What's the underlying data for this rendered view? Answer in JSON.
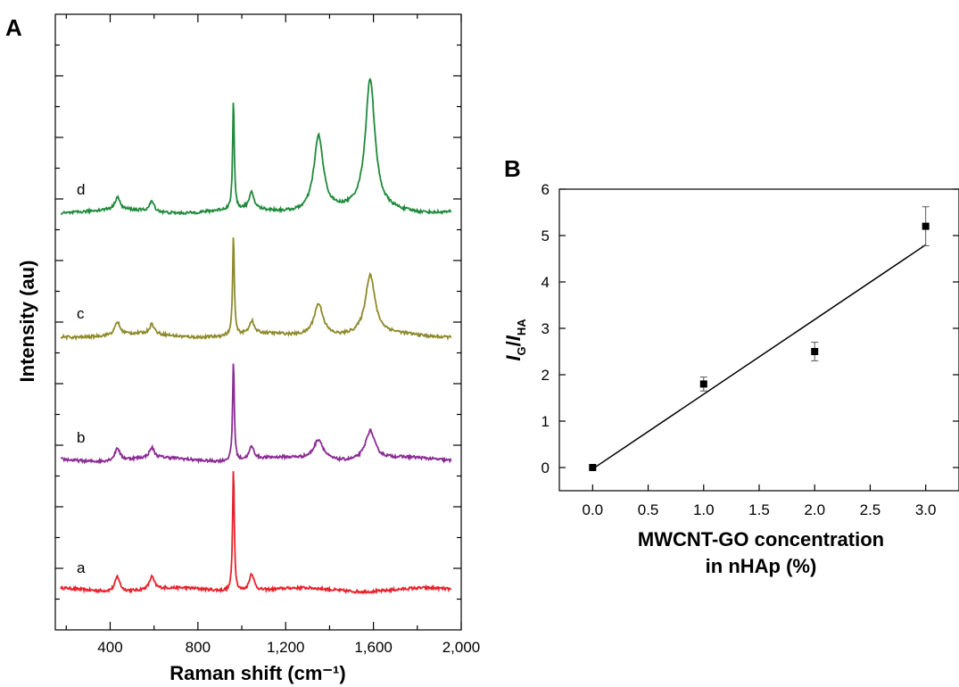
{
  "chart_data": [
    {
      "panel": "A",
      "type": "line",
      "xlabel": "Raman shift (cm⁻¹)",
      "ylabel": "Intensity (au)",
      "xlim": [
        150,
        2000
      ],
      "xticks": [
        400,
        800,
        1200,
        1600,
        2000
      ],
      "xtick_labels": [
        "400",
        "800",
        "1,200",
        "1,600",
        "2,000"
      ],
      "grid": false,
      "series": [
        {
          "name": "a",
          "color": "#e8212b",
          "peaks": [
            [
              433,
              0.12
            ],
            [
              590,
              0.1
            ],
            [
              962,
              1.0
            ],
            [
              1045,
              0.14
            ]
          ]
        },
        {
          "name": "b",
          "color": "#8b2b93",
          "peaks": [
            [
              433,
              0.1
            ],
            [
              590,
              0.08
            ],
            [
              962,
              0.8
            ],
            [
              1045,
              0.1
            ],
            [
              1350,
              0.16
            ],
            [
              1585,
              0.23
            ]
          ]
        },
        {
          "name": "c",
          "color": "#8e8a2b",
          "peaks": [
            [
              433,
              0.1
            ],
            [
              590,
              0.08
            ],
            [
              962,
              0.8
            ],
            [
              1045,
              0.1
            ],
            [
              1350,
              0.26
            ],
            [
              1585,
              0.47
            ]
          ]
        },
        {
          "name": "d",
          "color": "#1f8a3c",
          "peaks": [
            [
              433,
              0.1
            ],
            [
              590,
              0.08
            ],
            [
              962,
              0.87
            ],
            [
              1045,
              0.13
            ],
            [
              1350,
              0.6
            ],
            [
              1585,
              1.03
            ]
          ]
        }
      ]
    },
    {
      "panel": "B",
      "type": "scatter",
      "xlabel_line1": "MWCNT-GO concentration",
      "xlabel_line2": "in nHAp (%)",
      "ylabel_main1": "I",
      "ylabel_sub1": "G",
      "ylabel_sep": "/",
      "ylabel_main2": "I",
      "ylabel_sub2": "HA",
      "xlim": [
        -0.3,
        3.3
      ],
      "ylim": [
        -0.5,
        6
      ],
      "xticks": [
        0.0,
        0.5,
        1.0,
        1.5,
        2.0,
        2.5,
        3.0
      ],
      "xtick_labels": [
        "0.0",
        "0.5",
        "1.0",
        "1.5",
        "2.0",
        "2.5",
        "3.0"
      ],
      "yticks": [
        0,
        1,
        2,
        3,
        4,
        5,
        6
      ],
      "ytick_labels": [
        "0",
        "1",
        "2",
        "3",
        "4",
        "5",
        "6"
      ],
      "grid": false,
      "points": [
        {
          "x": 0,
          "y": 0.0,
          "err": 0.03
        },
        {
          "x": 1,
          "y": 1.8,
          "err": 0.15
        },
        {
          "x": 2,
          "y": 2.5,
          "err": 0.2
        },
        {
          "x": 3,
          "y": 5.2,
          "err": 0.42
        }
      ],
      "fit_line": {
        "x1": 0,
        "y1": -0.03,
        "x2": 3,
        "y2": 4.8
      }
    }
  ]
}
